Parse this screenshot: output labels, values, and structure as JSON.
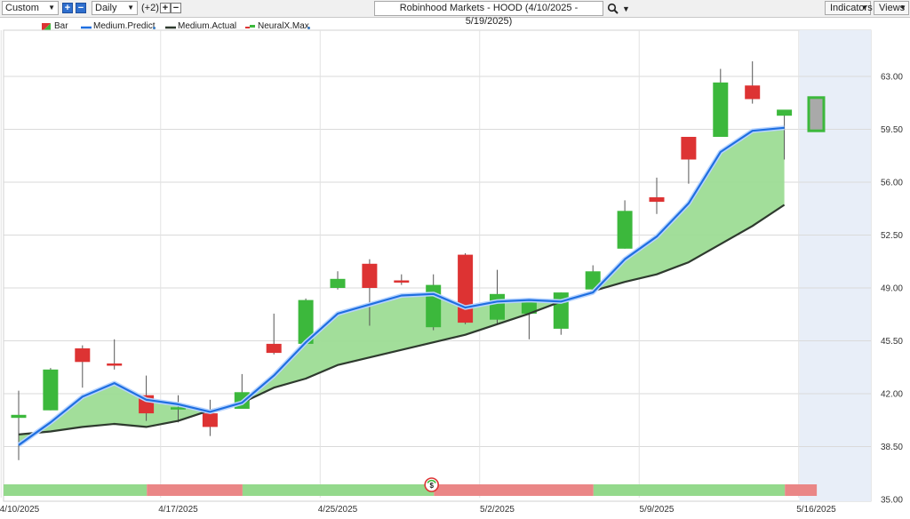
{
  "toolbar": {
    "period_select": "Custom",
    "interval_select": "Daily",
    "offset_label": "(+2)",
    "chart_title": "Robinhood Markets - HOOD (4/10/2025 - 5/19/2025)",
    "indicators_label": "Indicators",
    "views_label": "Views",
    "zoom_in_symbol": "+",
    "zoom_out_symbol": "−"
  },
  "legend": [
    {
      "label": "Bar",
      "icon": "bar-swatch-icon"
    },
    {
      "label": "Medium.Predict",
      "icon": "blue-line-icon"
    },
    {
      "label": "Medium.Actual",
      "icon": "dark-line-icon"
    },
    {
      "label": "NeuralX.Max",
      "icon": "neuralx-icon"
    }
  ],
  "colors": {
    "up": "#3cb83c",
    "down": "#dd3333",
    "predict": "#1f6fe0",
    "actual": "#2e3a2e",
    "fill": "#9ddc95",
    "signal_up": "#94d98c",
    "signal_down": "#ea8686",
    "forecast_bg": "#e8eef8"
  },
  "chart_data": {
    "type": "candlestick",
    "title": "Robinhood Markets - HOOD (4/10/2025 - 5/19/2025)",
    "ylim": [
      35.0,
      65.0
    ],
    "y_ticks": [
      "63.00",
      "59.50",
      "56.00",
      "52.50",
      "49.00",
      "45.50",
      "42.00",
      "38.50",
      "35.00"
    ],
    "x_tick_labels": [
      {
        "label": "4/10/2025",
        "index": 0
      },
      {
        "label": "4/17/2025",
        "index": 5
      },
      {
        "label": "4/25/2025",
        "index": 10
      },
      {
        "label": "5/2/2025",
        "index": 15
      },
      {
        "label": "5/9/2025",
        "index": 20
      },
      {
        "label": "5/16/2025",
        "index": 25
      }
    ],
    "candles": [
      {
        "o": 40.4,
        "h": 42.2,
        "l": 37.6,
        "c": 40.6
      },
      {
        "o": 40.9,
        "h": 43.7,
        "l": 40.9,
        "c": 43.6
      },
      {
        "o": 45.0,
        "h": 45.2,
        "l": 42.4,
        "c": 44.1
      },
      {
        "o": 44.0,
        "h": 45.6,
        "l": 43.6,
        "c": 43.9
      },
      {
        "o": 41.9,
        "h": 43.2,
        "l": 40.2,
        "c": 40.7
      },
      {
        "o": 41.0,
        "h": 41.9,
        "l": 40.1,
        "c": 41.1
      },
      {
        "o": 40.7,
        "h": 41.6,
        "l": 39.2,
        "c": 39.8
      },
      {
        "o": 41.0,
        "h": 43.3,
        "l": 41.0,
        "c": 42.1
      },
      {
        "o": 45.3,
        "h": 47.3,
        "l": 44.6,
        "c": 44.7
      },
      {
        "o": 45.3,
        "h": 48.3,
        "l": 45.3,
        "c": 48.2
      },
      {
        "o": 49.0,
        "h": 50.1,
        "l": 48.9,
        "c": 49.6
      },
      {
        "o": 50.6,
        "h": 50.9,
        "l": 46.5,
        "c": 49.0
      },
      {
        "o": 49.5,
        "h": 49.9,
        "l": 49.2,
        "c": 49.4
      },
      {
        "o": 46.4,
        "h": 49.9,
        "l": 46.2,
        "c": 49.2
      },
      {
        "o": 51.2,
        "h": 51.3,
        "l": 46.6,
        "c": 46.7
      },
      {
        "o": 46.9,
        "h": 50.2,
        "l": 46.6,
        "c": 48.6
      },
      {
        "o": 47.3,
        "h": 48.1,
        "l": 45.6,
        "c": 48.1
      },
      {
        "o": 46.3,
        "h": 48.7,
        "l": 45.9,
        "c": 48.7
      },
      {
        "o": 48.9,
        "h": 50.5,
        "l": 48.9,
        "c": 50.1
      },
      {
        "o": 51.6,
        "h": 54.8,
        "l": 51.6,
        "c": 54.1
      },
      {
        "o": 55.0,
        "h": 56.3,
        "l": 53.9,
        "c": 54.7
      },
      {
        "o": 59.0,
        "h": 59.0,
        "l": 55.9,
        "c": 57.5
      },
      {
        "o": 59.0,
        "h": 63.5,
        "l": 59.0,
        "c": 62.6
      },
      {
        "o": 62.4,
        "h": 64.0,
        "l": 61.2,
        "c": 61.5
      },
      {
        "o": 60.4,
        "h": 60.6,
        "l": 57.5,
        "c": 60.8
      }
    ],
    "forecast_box": {
      "index": 25,
      "low": 59.4,
      "high": 61.6
    },
    "medium_predict": [
      38.6,
      40.1,
      41.8,
      42.7,
      41.6,
      41.3,
      40.8,
      41.4,
      43.2,
      45.4,
      47.3,
      47.9,
      48.5,
      48.6,
      47.7,
      48.1,
      48.2,
      48.1,
      48.7,
      50.9,
      52.4,
      54.6,
      58.0,
      59.4,
      59.6
    ],
    "medium_actual": [
      39.3,
      39.5,
      39.8,
      40.0,
      39.8,
      40.2,
      40.9,
      41.4,
      42.4,
      43.0,
      43.9,
      44.4,
      44.9,
      45.4,
      45.9,
      46.6,
      47.3,
      48.1,
      48.8,
      49.4,
      49.9,
      50.7,
      51.9,
      53.1,
      54.5
    ],
    "signal_strip": [
      {
        "from": 0,
        "to": 3.85,
        "signal": "up"
      },
      {
        "from": 3.85,
        "to": 6.85,
        "signal": "down"
      },
      {
        "from": 6.85,
        "to": 12.85,
        "signal": "up"
      },
      {
        "from": 12.85,
        "to": 17.85,
        "signal": "down"
      },
      {
        "from": 17.85,
        "to": 23.85,
        "signal": "up"
      },
      {
        "from": 23.85,
        "to": 24.85,
        "signal": "down"
      }
    ],
    "signal_marker_index": 13
  }
}
